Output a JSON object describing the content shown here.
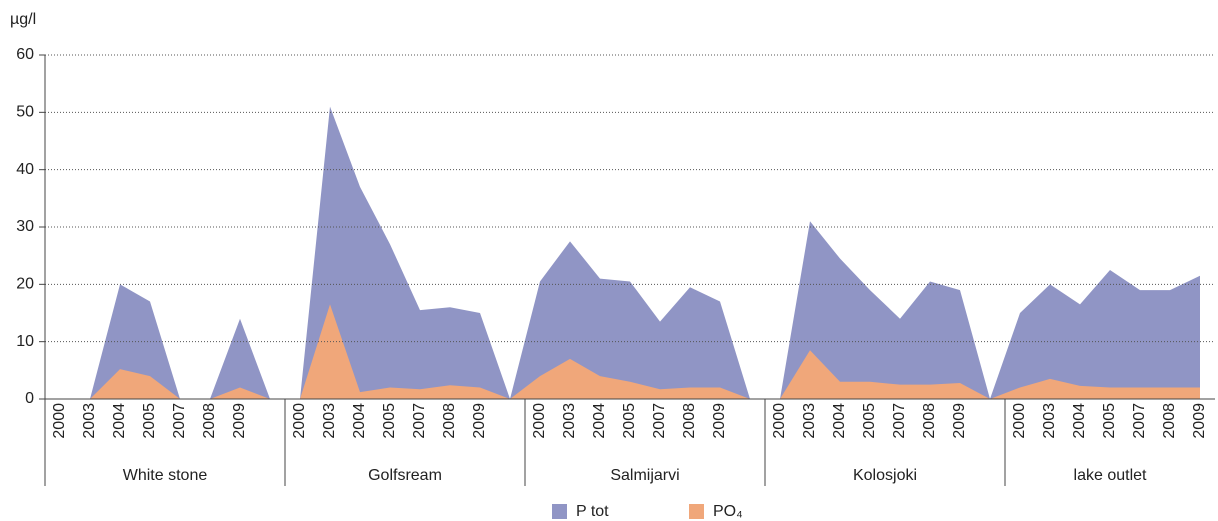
{
  "chart_data": {
    "type": "area",
    "y_unit_label": "µg/l",
    "categories": [
      "2000",
      "2003",
      "2004",
      "2005",
      "2007",
      "2008",
      "2009",
      null,
      "2000",
      "2003",
      "2004",
      "2005",
      "2007",
      "2008",
      "2009",
      null,
      "2000",
      "2003",
      "2004",
      "2005",
      "2007",
      "2008",
      "2009",
      null,
      "2000",
      "2003",
      "2004",
      "2005",
      "2007",
      "2008",
      "2009",
      null,
      "2000",
      "2003",
      "2004",
      "2005",
      "2007",
      "2008",
      "2009"
    ],
    "groups": [
      "White stone",
      "Golfsream",
      "Salmijarvi",
      "Kolosjoki",
      "lake outlet"
    ],
    "series": [
      {
        "name": "P tot",
        "color": "#9095c5",
        "values": [
          0,
          0,
          20,
          17,
          0,
          0,
          14,
          0,
          0,
          51,
          37,
          27,
          15.5,
          16,
          15,
          0,
          20.5,
          27.5,
          21,
          20.5,
          13.5,
          19.5,
          17,
          0,
          0,
          31,
          24.5,
          19,
          14,
          20.5,
          19,
          0,
          15,
          20,
          16.5,
          22.5,
          19,
          19,
          21.5
        ]
      },
      {
        "name": "PO₄",
        "color": "#f0a77a",
        "values": [
          0,
          0,
          5.2,
          4,
          0,
          0,
          2,
          0,
          0,
          16.5,
          1.2,
          2,
          1.7,
          2.4,
          2,
          0,
          4,
          7,
          4,
          3,
          1.7,
          2,
          2,
          0,
          0,
          8.5,
          3,
          3,
          2.5,
          2.5,
          2.8,
          0,
          2,
          3.5,
          2.3,
          2,
          2,
          2,
          2
        ]
      }
    ],
    "ylim": [
      0,
      60
    ],
    "yticks": [
      0,
      10,
      20,
      30,
      40,
      50,
      60
    ],
    "grid": true
  }
}
